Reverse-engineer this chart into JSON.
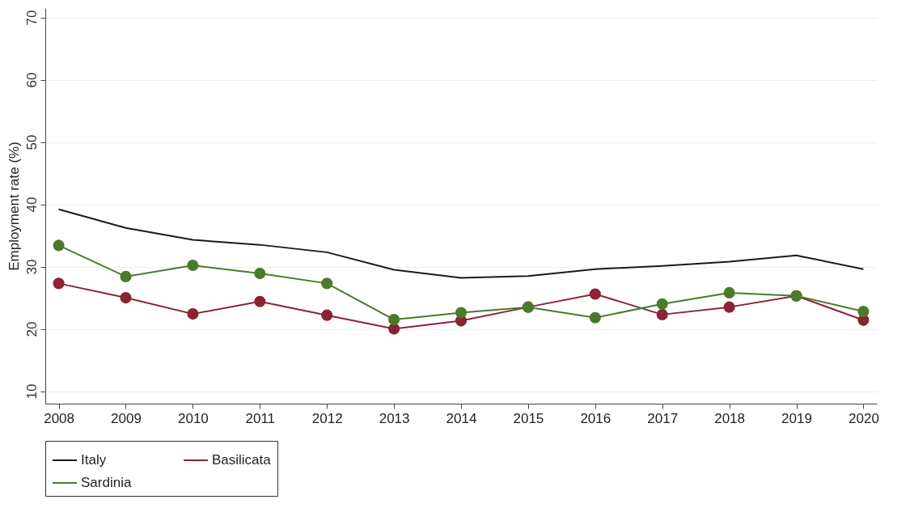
{
  "chart_data": {
    "type": "line",
    "ylabel": "Employment rate (%)",
    "x": [
      2008,
      2009,
      2010,
      2011,
      2012,
      2013,
      2014,
      2015,
      2016,
      2017,
      2018,
      2019,
      2020
    ],
    "series": [
      {
        "name": "Italy",
        "color": "#1a1a1a",
        "marker": "none",
        "values": [
          39.2,
          36.2,
          34.3,
          33.5,
          32.3,
          29.5,
          28.2,
          28.5,
          29.6,
          30.1,
          30.8,
          31.8,
          29.6
        ]
      },
      {
        "name": "Basilicata",
        "color": "#8b2335",
        "marker": "circle",
        "values": [
          27.3,
          25.0,
          22.4,
          24.4,
          22.2,
          20.0,
          21.3,
          23.5,
          25.6,
          22.3,
          23.5,
          25.3,
          21.4
        ]
      },
      {
        "name": "Sardinia",
        "color": "#4b7a2c",
        "marker": "circle",
        "values": [
          33.4,
          28.4,
          30.2,
          28.9,
          27.3,
          21.5,
          22.6,
          23.5,
          21.8,
          24.0,
          25.8,
          25.3,
          22.8
        ]
      }
    ],
    "xlim": [
      2007.8,
      2020.2
    ],
    "xticks": [
      2008,
      2009,
      2010,
      2011,
      2012,
      2013,
      2014,
      2015,
      2016,
      2017,
      2018,
      2019,
      2020
    ],
    "ylim": [
      8,
      71.5
    ],
    "yticks": [
      10,
      20,
      30,
      40,
      50,
      60,
      70
    ],
    "grid": "y",
    "legend": "bottom",
    "line_style": "solid"
  }
}
